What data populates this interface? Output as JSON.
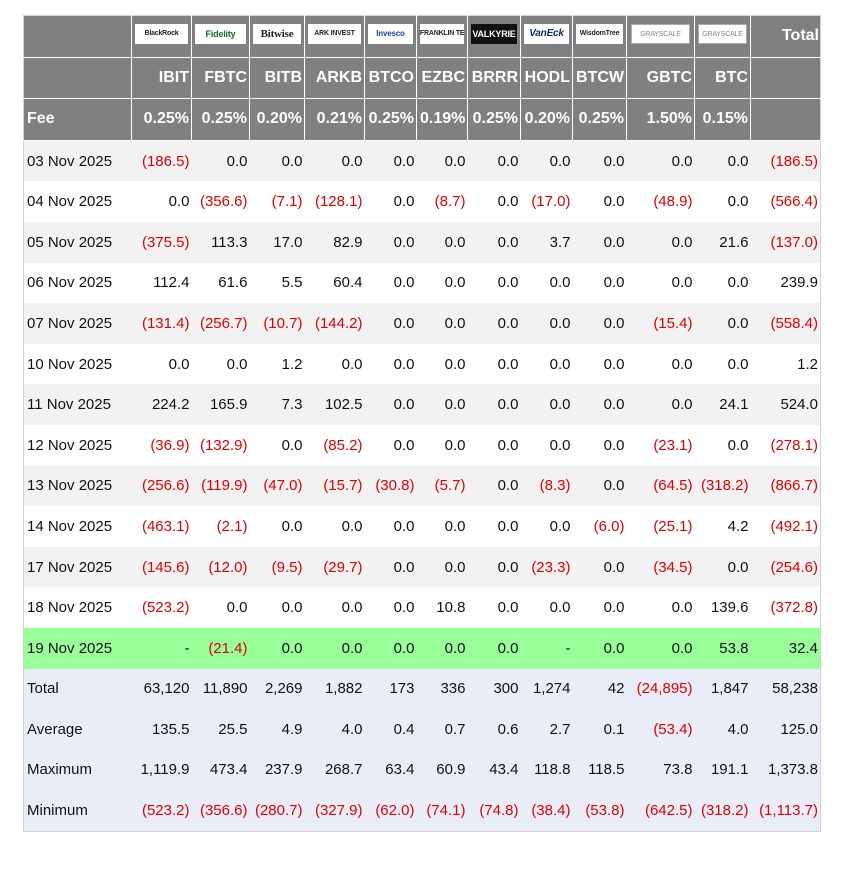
{
  "header": {
    "logos": [
      "BlackRock",
      "Fidelity",
      "Bitwise",
      "ARK INVEST",
      "Invesco",
      "FRANKLIN TEMPLETON",
      "VALKYRIE",
      "VanEck",
      "WisdomTree",
      "GRAYSCALE",
      "GRAYSCALE"
    ],
    "total": "Total",
    "tickers": [
      "IBIT",
      "FBTC",
      "BITB",
      "ARKB",
      "BTCO",
      "EZBC",
      "BRRR",
      "HODL",
      "BTCW",
      "GBTC",
      "BTC"
    ],
    "fee_label": "Fee",
    "fees": [
      "0.25%",
      "0.25%",
      "0.20%",
      "0.21%",
      "0.25%",
      "0.19%",
      "0.25%",
      "0.20%",
      "0.25%",
      "1.50%",
      "0.15%"
    ]
  },
  "table": {
    "rows": [
      [
        "03 Nov 2025",
        "(186.5)",
        "0.0",
        "0.0",
        "0.0",
        "0.0",
        "0.0",
        "0.0",
        "0.0",
        "0.0",
        "0.0",
        "0.0",
        "(186.5)"
      ],
      [
        "04 Nov 2025",
        "0.0",
        "(356.6)",
        "(7.1)",
        "(128.1)",
        "0.0",
        "(8.7)",
        "0.0",
        "(17.0)",
        "0.0",
        "(48.9)",
        "0.0",
        "(566.4)"
      ],
      [
        "05 Nov 2025",
        "(375.5)",
        "113.3",
        "17.0",
        "82.9",
        "0.0",
        "0.0",
        "0.0",
        "3.7",
        "0.0",
        "0.0",
        "21.6",
        "(137.0)"
      ],
      [
        "06 Nov 2025",
        "112.4",
        "61.6",
        "5.5",
        "60.4",
        "0.0",
        "0.0",
        "0.0",
        "0.0",
        "0.0",
        "0.0",
        "0.0",
        "239.9"
      ],
      [
        "07 Nov 2025",
        "(131.4)",
        "(256.7)",
        "(10.7)",
        "(144.2)",
        "0.0",
        "0.0",
        "0.0",
        "0.0",
        "0.0",
        "(15.4)",
        "0.0",
        "(558.4)"
      ],
      [
        "10 Nov 2025",
        "0.0",
        "0.0",
        "1.2",
        "0.0",
        "0.0",
        "0.0",
        "0.0",
        "0.0",
        "0.0",
        "0.0",
        "0.0",
        "1.2"
      ],
      [
        "11 Nov 2025",
        "224.2",
        "165.9",
        "7.3",
        "102.5",
        "0.0",
        "0.0",
        "0.0",
        "0.0",
        "0.0",
        "0.0",
        "24.1",
        "524.0"
      ],
      [
        "12 Nov 2025",
        "(36.9)",
        "(132.9)",
        "0.0",
        "(85.2)",
        "0.0",
        "0.0",
        "0.0",
        "0.0",
        "0.0",
        "(23.1)",
        "0.0",
        "(278.1)"
      ],
      [
        "13 Nov 2025",
        "(256.6)",
        "(119.9)",
        "(47.0)",
        "(15.7)",
        "(30.8)",
        "(5.7)",
        "0.0",
        "(8.3)",
        "0.0",
        "(64.5)",
        "(318.2)",
        "(866.7)"
      ],
      [
        "14 Nov 2025",
        "(463.1)",
        "(2.1)",
        "0.0",
        "0.0",
        "0.0",
        "0.0",
        "0.0",
        "0.0",
        "(6.0)",
        "(25.1)",
        "4.2",
        "(492.1)"
      ],
      [
        "17 Nov 2025",
        "(145.6)",
        "(12.0)",
        "(9.5)",
        "(29.7)",
        "0.0",
        "0.0",
        "0.0",
        "(23.3)",
        "0.0",
        "(34.5)",
        "0.0",
        "(254.6)"
      ],
      [
        "18 Nov 2025",
        "(523.2)",
        "0.0",
        "0.0",
        "0.0",
        "0.0",
        "10.8",
        "0.0",
        "0.0",
        "0.0",
        "0.0",
        "139.6",
        "(372.8)"
      ],
      [
        "19 Nov 2025",
        "-",
        "(21.4)",
        "0.0",
        "0.0",
        "0.0",
        "0.0",
        "0.0",
        "-",
        "0.0",
        "0.0",
        "53.8",
        "32.4"
      ]
    ],
    "summary": [
      [
        "Total",
        "63,120",
        "11,890",
        "2,269",
        "1,882",
        "173",
        "336",
        "300",
        "1,274",
        "42",
        "(24,895)",
        "1,847",
        "58,238"
      ],
      [
        "Average",
        "135.5",
        "25.5",
        "4.9",
        "4.0",
        "0.4",
        "0.7",
        "0.6",
        "2.7",
        "0.1",
        "(53.4)",
        "4.0",
        "125.0"
      ],
      [
        "Maximum",
        "1,119.9",
        "473.4",
        "237.9",
        "268.7",
        "63.4",
        "60.9",
        "43.4",
        "118.8",
        "118.5",
        "73.8",
        "191.1",
        "1,373.8"
      ],
      [
        "Minimum",
        "(523.2)",
        "(356.6)",
        "(280.7)",
        "(327.9)",
        "(62.0)",
        "(74.1)",
        "(74.8)",
        "(38.4)",
        "(53.8)",
        "(642.5)",
        "(318.2)",
        "(1,113.7)"
      ]
    ]
  }
}
